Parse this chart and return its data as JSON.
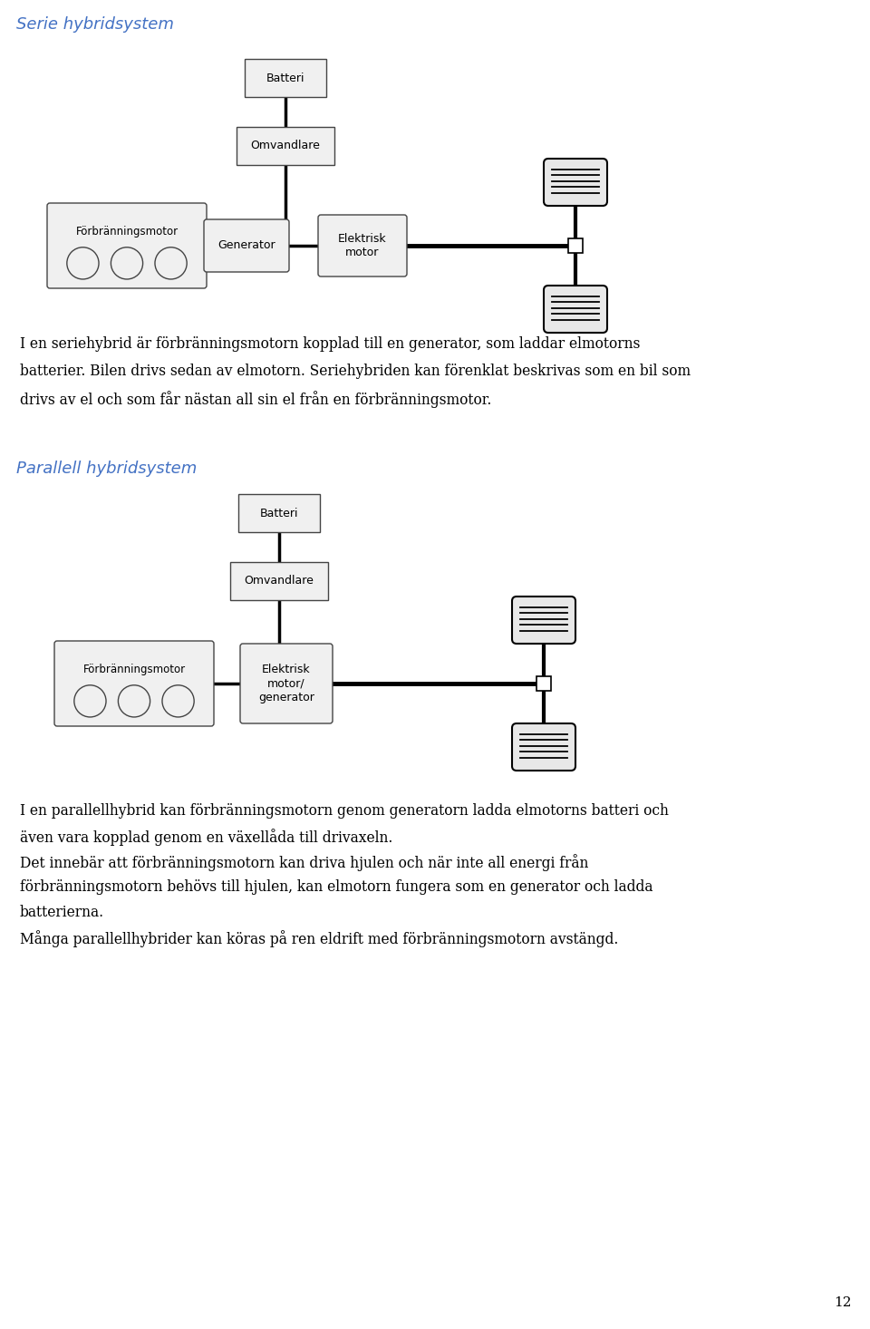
{
  "title1": "Serie hybridsystem",
  "title2": "Parallell hybridsystem",
  "title_color": "#4472C4",
  "para1_lines": [
    "I en seriehybrid är förbränningsmotorn kopplad till en generator, som laddar elmotorns",
    "batterier. Bilen drivs sedan av elmotorn. Seriehybriden kan förenklat beskrivas som en bil som",
    "drivs av el och som får nästan all sin el från en förbränningsmotor."
  ],
  "para2_lines": [
    "I en parallellhybrid kan förbränningsmotorn genom generatorn ladda elmotorns batteri och",
    "även vara kopplad genom en växellåda till drivaxeln.",
    "Det innebär att förbränningsmotorn kan driva hjulen och när inte all energi från",
    "förbränningsmotorn behövs till hjulen, kan elmotorn fungera som en generator och ladda",
    "batterierna.",
    "Många parallellhybrider kan köras på ren eldrift med förbränningsmotorn avstängd."
  ],
  "page_number": "12",
  "bg_color": "#ffffff",
  "text_color": "#000000",
  "box_fill": "#f0f0f0",
  "box_edge": "#444444",
  "line_color": "#000000",
  "wheel_fill": "#e8e8e8"
}
